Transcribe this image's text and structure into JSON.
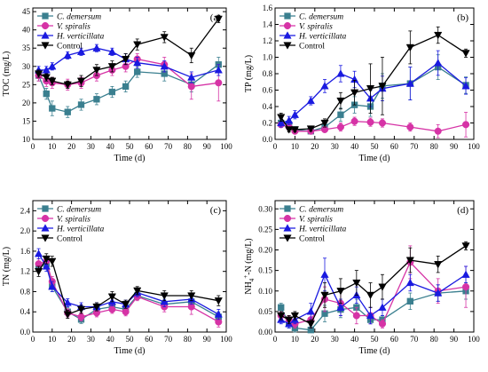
{
  "chart_data": [
    {
      "type": "line",
      "panel_label": "(a)",
      "xlabel": "Time (d)",
      "ylabel": "TOC (mg/L)",
      "xlim": [
        0,
        100
      ],
      "ylim": [
        10,
        46
      ],
      "xticks": [
        0,
        10,
        20,
        30,
        40,
        50,
        60,
        70,
        80,
        90,
        100
      ],
      "yticks": [
        10,
        15,
        20,
        25,
        30,
        35,
        40,
        45
      ],
      "legend_position": "top-left",
      "series": [
        {
          "name": "C. demersum",
          "marker": "square",
          "color": "#3a7f8f",
          "x": [
            3,
            7,
            10,
            18,
            25,
            33,
            41,
            48,
            54,
            68,
            82,
            96
          ],
          "y": [
            27.5,
            22.5,
            18.5,
            17.5,
            19.5,
            21,
            23,
            24.5,
            28.5,
            28,
            25,
            30.5
          ],
          "err": [
            1.5,
            1.5,
            2,
            1.5,
            1.5,
            1.5,
            1.5,
            1.5,
            1.5,
            2,
            2,
            2
          ]
        },
        {
          "name": "V. spiralis",
          "marker": "circle",
          "color": "#d633a6",
          "x": [
            3,
            7,
            10,
            18,
            25,
            33,
            41,
            48,
            54,
            68,
            82,
            96
          ],
          "y": [
            27.5,
            26,
            25.5,
            25,
            25.5,
            27.5,
            29,
            30,
            32,
            30.5,
            24.5,
            25.5
          ],
          "err": [
            1.5,
            1.5,
            1.5,
            1.5,
            1.5,
            1.5,
            1.5,
            1.5,
            1.5,
            2,
            3.5,
            5
          ]
        },
        {
          "name": "H. verticillata",
          "marker": "triangle",
          "color": "#1a1ae0",
          "x": [
            3,
            7,
            10,
            18,
            25,
            33,
            41,
            48,
            54,
            68,
            82,
            96
          ],
          "y": [
            29,
            29,
            30,
            33,
            34,
            35,
            34,
            32,
            31,
            30,
            27,
            29
          ],
          "err": [
            1,
            1,
            1,
            1,
            1,
            1,
            1,
            1.5,
            1.5,
            1.5,
            1.5,
            1.5
          ]
        },
        {
          "name": "Control",
          "marker": "triangle-down",
          "color": "#000000",
          "x": [
            3,
            7,
            10,
            18,
            25,
            33,
            41,
            48,
            54,
            68,
            82,
            96
          ],
          "y": [
            28,
            27,
            26,
            25,
            26,
            29,
            30,
            32,
            36,
            38,
            33,
            43
          ],
          "err": [
            1,
            1,
            1,
            1,
            1.5,
            1.5,
            1.5,
            1.5,
            1.5,
            1.5,
            2,
            1
          ]
        }
      ]
    },
    {
      "type": "line",
      "panel_label": "(b)",
      "xlabel": "Time (d)",
      "ylabel": "TP (mg/L)",
      "xlim": [
        0,
        100
      ],
      "ylim": [
        0,
        1.6
      ],
      "xticks": [
        0,
        10,
        20,
        30,
        40,
        50,
        60,
        70,
        80,
        90,
        100
      ],
      "yticks": [
        0.0,
        0.2,
        0.4,
        0.6,
        0.8,
        1.0,
        1.2,
        1.4,
        1.6
      ],
      "legend_position": "top-left",
      "series": [
        {
          "name": "C. demersum",
          "marker": "square",
          "color": "#3a7f8f",
          "x": [
            3,
            7,
            10,
            18,
            25,
            33,
            40,
            48,
            54,
            68,
            82,
            96
          ],
          "y": [
            0.2,
            0.18,
            0.12,
            0.1,
            0.15,
            0.3,
            0.42,
            0.4,
            0.65,
            0.68,
            0.88,
            0.66
          ],
          "err": [
            0.03,
            0.03,
            0.03,
            0.03,
            0.05,
            0.08,
            0.1,
            0.12,
            0.15,
            0.2,
            0.15,
            0.1
          ]
        },
        {
          "name": "V. spiralis",
          "marker": "circle",
          "color": "#d633a6",
          "x": [
            3,
            7,
            10,
            18,
            25,
            33,
            40,
            48,
            54,
            68,
            82,
            96
          ],
          "y": [
            0.18,
            0.15,
            0.1,
            0.1,
            0.12,
            0.15,
            0.22,
            0.21,
            0.2,
            0.15,
            0.1,
            0.18
          ],
          "err": [
            0.03,
            0.03,
            0.03,
            0.03,
            0.03,
            0.05,
            0.05,
            0.05,
            0.05,
            0.05,
            0.08,
            0.15
          ]
        },
        {
          "name": "H. verticillata",
          "marker": "triangle",
          "color": "#1a1ae0",
          "x": [
            3,
            7,
            10,
            18,
            25,
            33,
            40,
            48,
            54,
            68,
            82,
            96
          ],
          "y": [
            0.2,
            0.23,
            0.3,
            0.47,
            0.65,
            0.8,
            0.73,
            0.5,
            0.62,
            0.68,
            0.93,
            0.65
          ],
          "err": [
            0.05,
            0.05,
            0.05,
            0.05,
            0.08,
            0.1,
            0.1,
            0.1,
            0.15,
            0.2,
            0.15,
            0.1
          ]
        },
        {
          "name": "Control",
          "marker": "triangle-down",
          "color": "#000000",
          "x": [
            3,
            7,
            10,
            18,
            25,
            33,
            40,
            48,
            54,
            68,
            82,
            96
          ],
          "y": [
            0.27,
            0.12,
            0.12,
            0.13,
            0.2,
            0.47,
            0.57,
            0.62,
            0.65,
            1.12,
            1.27,
            1.05
          ],
          "err": [
            0.05,
            0.03,
            0.03,
            0.03,
            0.05,
            0.1,
            0.15,
            0.3,
            0.35,
            0.2,
            0.1,
            0.05
          ]
        }
      ]
    },
    {
      "type": "line",
      "panel_label": "(c)",
      "xlabel": "Time (d)",
      "ylabel": "TN (mg/L)",
      "xlim": [
        0,
        100
      ],
      "ylim": [
        0,
        2.6
      ],
      "xticks": [
        0,
        10,
        20,
        30,
        40,
        50,
        60,
        70,
        80,
        90,
        100
      ],
      "yticks": [
        0.0,
        0.4,
        0.8,
        1.2,
        1.6,
        2.0,
        2.4
      ],
      "legend_position": "top-left",
      "series": [
        {
          "name": "C. demersum",
          "marker": "square",
          "color": "#3a7f8f",
          "x": [
            3,
            7,
            10,
            18,
            25,
            33,
            41,
            48,
            54,
            68,
            82,
            96
          ],
          "y": [
            1.3,
            1.35,
            0.9,
            0.4,
            0.25,
            0.45,
            0.5,
            0.45,
            0.72,
            0.55,
            0.6,
            0.3
          ],
          "err": [
            0.1,
            0.1,
            0.1,
            0.08,
            0.08,
            0.08,
            0.08,
            0.08,
            0.08,
            0.1,
            0.1,
            0.1
          ]
        },
        {
          "name": "V. spiralis",
          "marker": "circle",
          "color": "#d633a6",
          "x": [
            3,
            7,
            10,
            18,
            25,
            33,
            41,
            48,
            54,
            68,
            82,
            96
          ],
          "y": [
            1.35,
            1.4,
            1.0,
            0.38,
            0.3,
            0.38,
            0.45,
            0.4,
            0.7,
            0.5,
            0.5,
            0.2
          ],
          "err": [
            0.1,
            0.1,
            0.1,
            0.08,
            0.08,
            0.08,
            0.08,
            0.08,
            0.08,
            0.1,
            0.15,
            0.1
          ]
        },
        {
          "name": "H. verticillata",
          "marker": "triangle",
          "color": "#1a1ae0",
          "x": [
            3,
            7,
            10,
            18,
            25,
            33,
            41,
            48,
            54,
            68,
            82,
            96
          ],
          "y": [
            1.55,
            1.3,
            0.9,
            0.58,
            0.5,
            0.5,
            0.6,
            0.55,
            0.78,
            0.6,
            0.65,
            0.35
          ],
          "err": [
            0.1,
            0.1,
            0.1,
            0.08,
            0.08,
            0.08,
            0.08,
            0.08,
            0.08,
            0.1,
            0.1,
            0.1
          ]
        },
        {
          "name": "Control",
          "marker": "triangle-down",
          "color": "#000000",
          "x": [
            3,
            7,
            10,
            18,
            25,
            33,
            41,
            48,
            54,
            68,
            82,
            96
          ],
          "y": [
            1.2,
            1.45,
            1.4,
            0.35,
            0.45,
            0.5,
            0.7,
            0.55,
            0.82,
            0.72,
            0.72,
            0.62
          ],
          "err": [
            0.1,
            0.1,
            0.1,
            0.08,
            0.08,
            0.08,
            0.1,
            0.08,
            0.08,
            0.1,
            0.1,
            0.1
          ]
        }
      ]
    },
    {
      "type": "line",
      "panel_label": "(d)",
      "xlabel": "Time (d)",
      "ylabel": "NH4+-N (mg/L)",
      "xlim": [
        0,
        100
      ],
      "ylim": [
        0,
        0.32
      ],
      "xticks": [
        0,
        10,
        20,
        30,
        40,
        50,
        60,
        70,
        80,
        90,
        100
      ],
      "yticks": [
        0.0,
        0.05,
        0.1,
        0.15,
        0.2,
        0.25,
        0.3
      ],
      "legend_position": "top-left",
      "series": [
        {
          "name": "C. demersum",
          "marker": "square",
          "color": "#3a7f8f",
          "x": [
            3,
            7,
            10,
            18,
            25,
            33,
            41,
            48,
            54,
            68,
            82,
            96
          ],
          "y": [
            0.06,
            0.02,
            0.01,
            0.005,
            0.045,
            0.055,
            0.06,
            0.03,
            0.03,
            0.075,
            0.095,
            0.1
          ],
          "err": [
            0.01,
            0.01,
            0.01,
            0.01,
            0.02,
            0.02,
            0.02,
            0.01,
            0.01,
            0.02,
            0.02,
            0.02
          ]
        },
        {
          "name": "V. spiralis",
          "marker": "circle",
          "color": "#d633a6",
          "x": [
            3,
            7,
            10,
            18,
            25,
            33,
            41,
            48,
            54,
            68,
            82,
            96
          ],
          "y": [
            0.04,
            0.03,
            0.02,
            0.03,
            0.08,
            0.07,
            0.04,
            0.04,
            0.02,
            0.17,
            0.1,
            0.11
          ],
          "err": [
            0.01,
            0.01,
            0.01,
            0.02,
            0.03,
            0.03,
            0.02,
            0.02,
            0.01,
            0.04,
            0.03,
            0.05
          ]
        },
        {
          "name": "H. verticillata",
          "marker": "triangle",
          "color": "#1a1ae0",
          "x": [
            3,
            7,
            10,
            18,
            25,
            33,
            41,
            48,
            54,
            68,
            82,
            96
          ],
          "y": [
            0.03,
            0.02,
            0.03,
            0.05,
            0.14,
            0.06,
            0.09,
            0.04,
            0.06,
            0.12,
            0.095,
            0.14
          ],
          "err": [
            0.01,
            0.01,
            0.01,
            0.02,
            0.04,
            0.02,
            0.02,
            0.02,
            0.02,
            0.02,
            0.02,
            0.02
          ]
        },
        {
          "name": "Control",
          "marker": "triangle-down",
          "color": "#000000",
          "x": [
            3,
            7,
            10,
            18,
            25,
            33,
            41,
            48,
            54,
            68,
            82,
            96
          ],
          "y": [
            0.04,
            0.03,
            0.04,
            0.02,
            0.09,
            0.1,
            0.12,
            0.09,
            0.11,
            0.175,
            0.165,
            0.21
          ],
          "err": [
            0.01,
            0.01,
            0.01,
            0.01,
            0.03,
            0.03,
            0.03,
            0.03,
            0.03,
            0.03,
            0.02,
            0.01
          ]
        }
      ]
    }
  ]
}
